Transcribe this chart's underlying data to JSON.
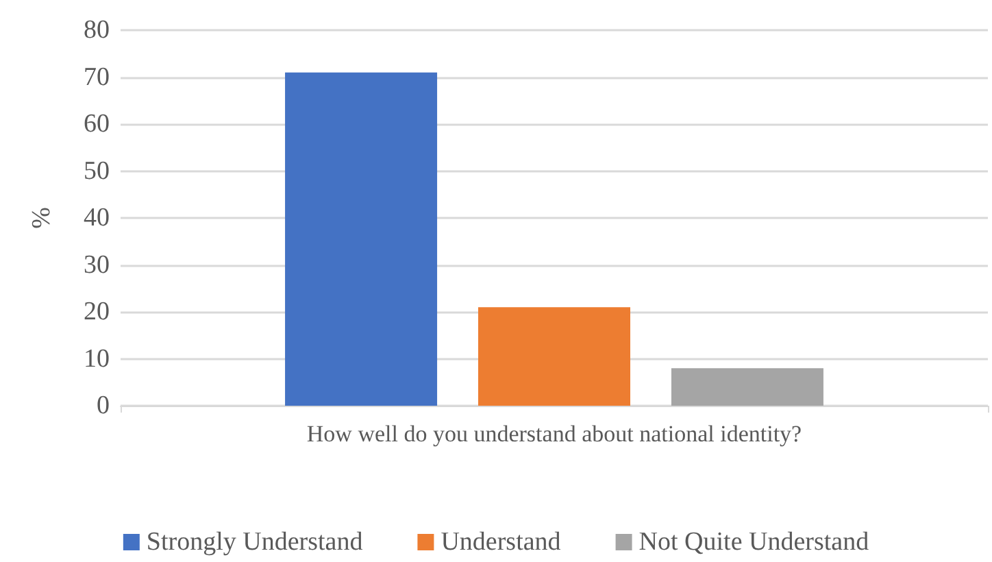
{
  "chart_data": {
    "type": "bar",
    "ylabel": "%",
    "categories": [
      "How well do you understand about national identity?"
    ],
    "series": [
      {
        "name": "Strongly Understand",
        "color": "#4472c4",
        "values": [
          71
        ]
      },
      {
        "name": "Understand",
        "color": "#ed7d31",
        "values": [
          21
        ]
      },
      {
        "name": "Not Quite Understand",
        "color": "#a5a5a5",
        "values": [
          8
        ]
      }
    ],
    "ylim": [
      0,
      80
    ],
    "yticks": [
      0,
      10,
      20,
      30,
      40,
      50,
      60,
      70,
      80
    ],
    "grid": "y",
    "legend": "bottom"
  }
}
